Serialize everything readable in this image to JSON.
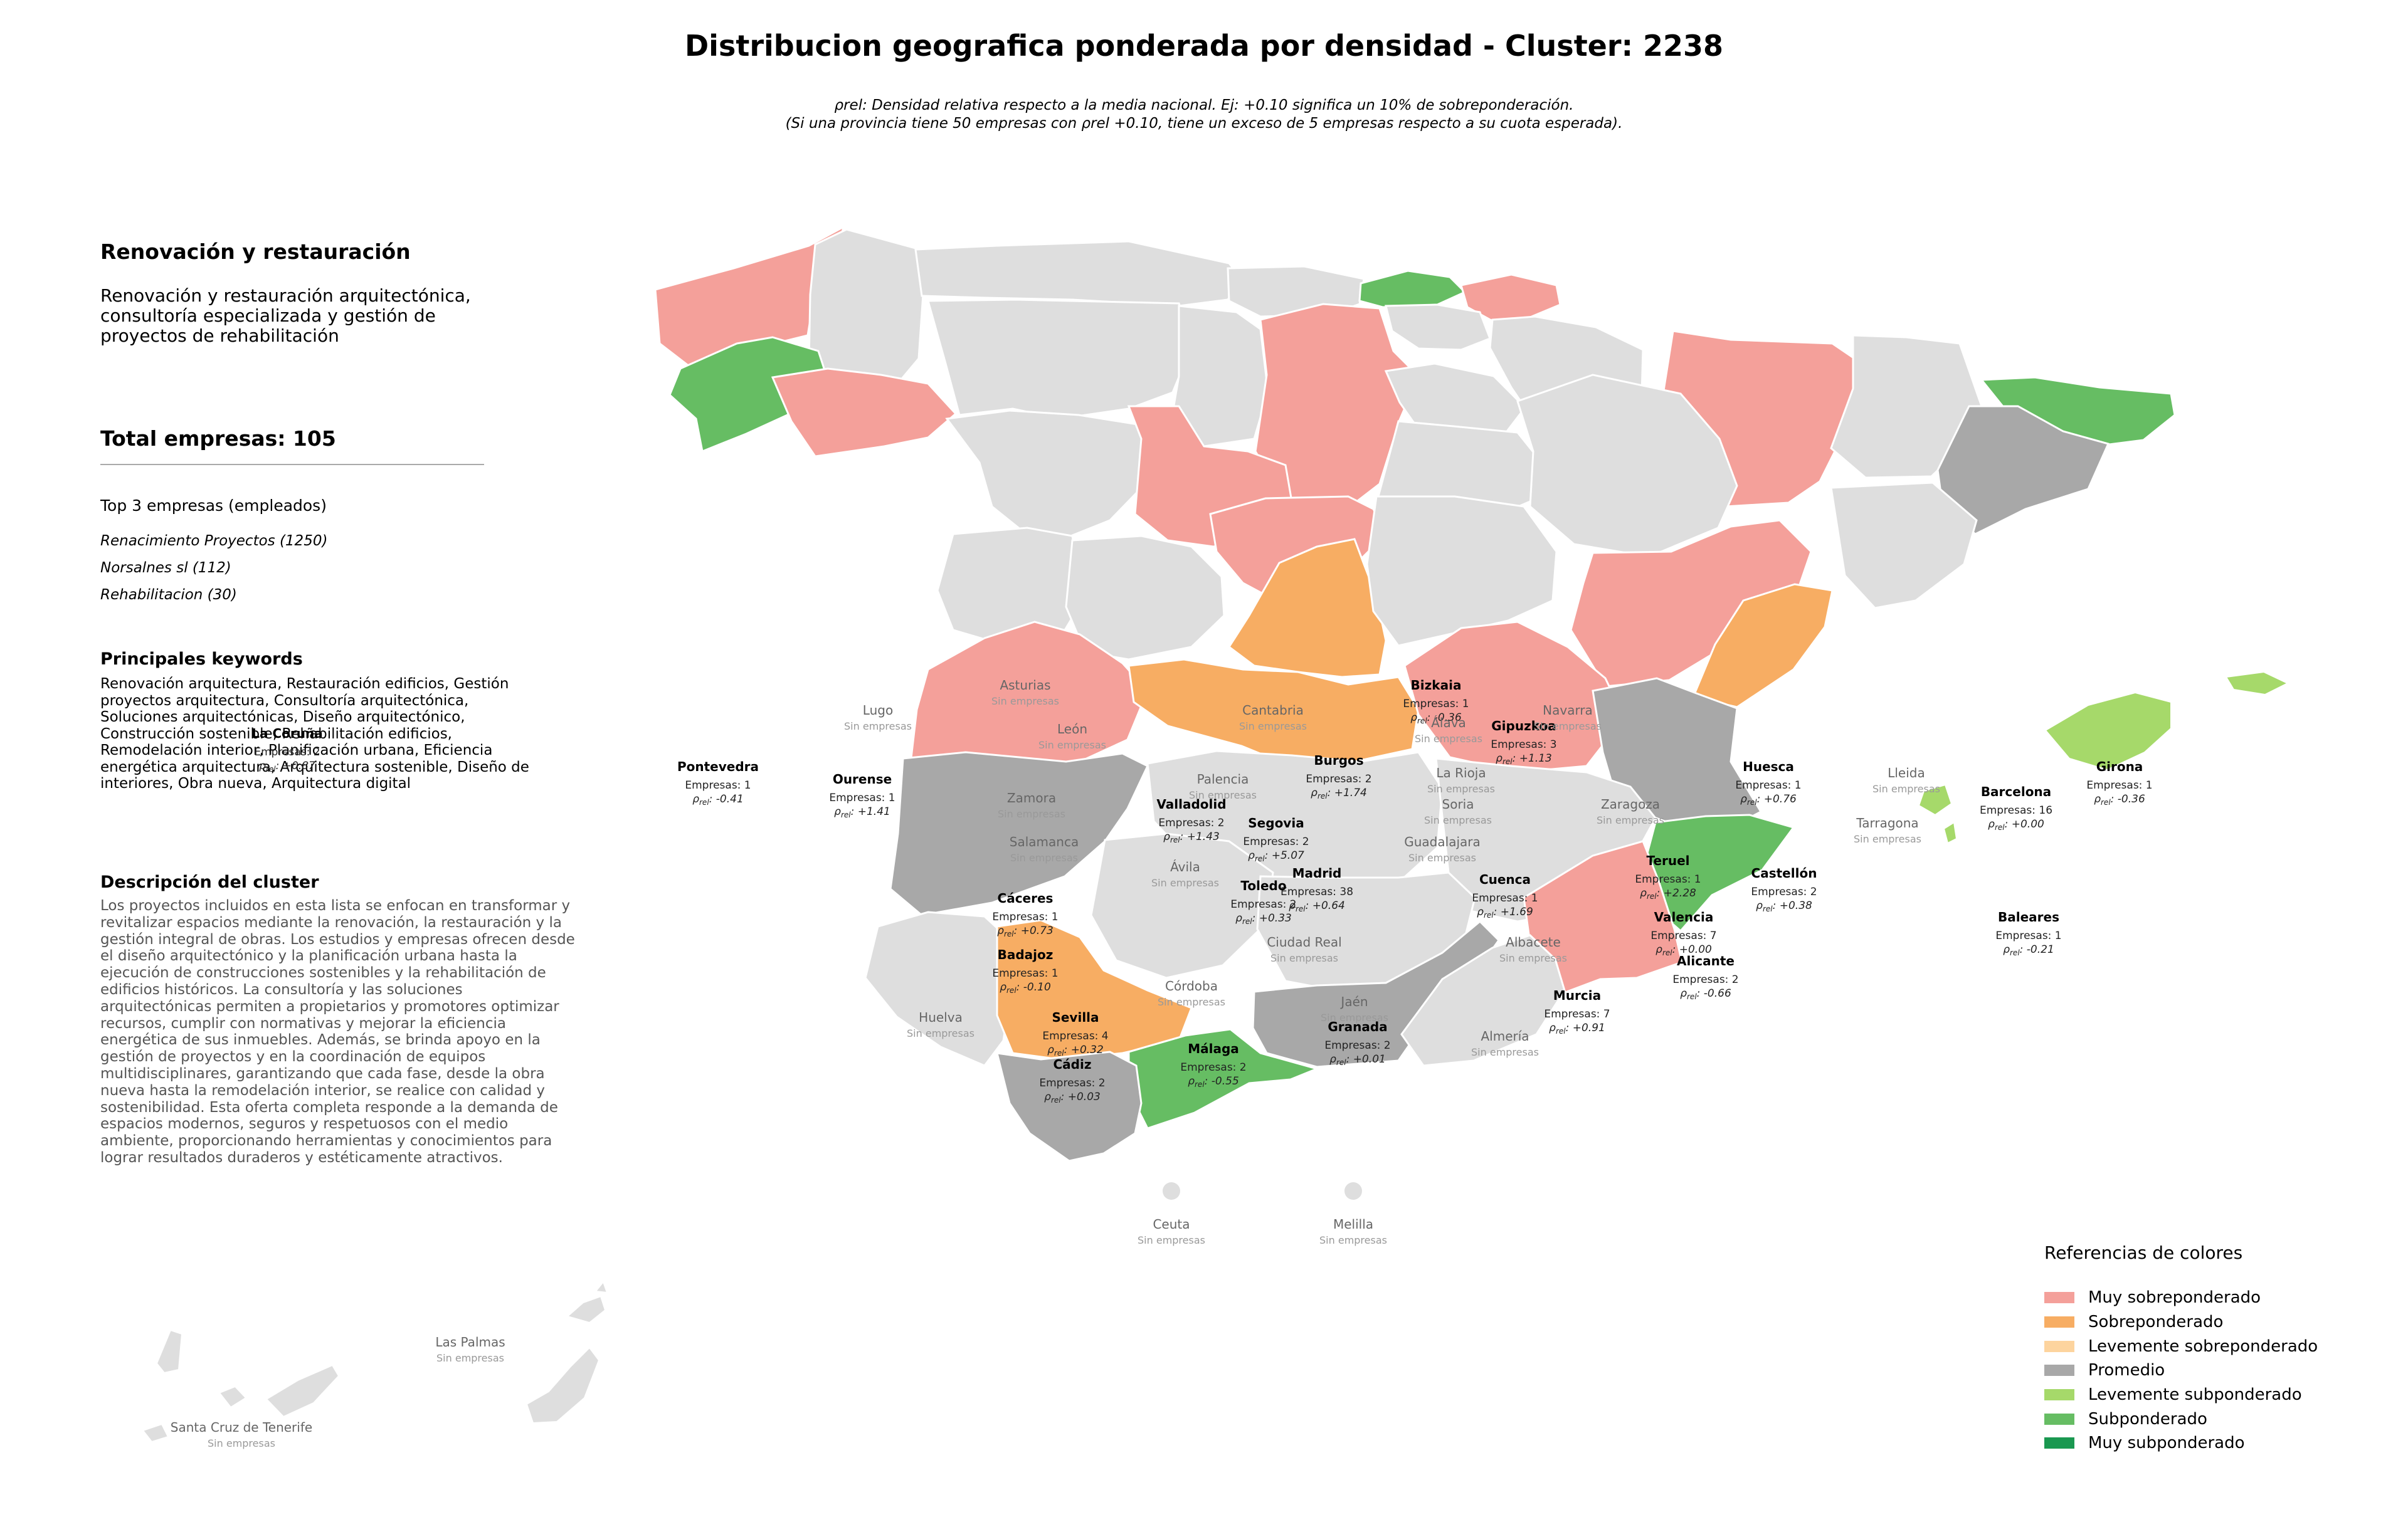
{
  "title": "Distribucion geografica ponderada por densidad - Cluster: 2238",
  "subtitle": {
    "line1": "ρrel: Densidad relativa respecto a la media nacional. Ej: +0.10 significa un 10% de sobreponderación.",
    "line2": "(Si una provincia tiene 50 empresas con ρrel +0.10, tiene un exceso de 5 empresas respecto a su cuota esperada)."
  },
  "sidebar": {
    "cluster_title": "Renovación y restauración",
    "cluster_description": "Renovación y restauración arquitectónica, consultoría especializada y gestión de proyectos de rehabilitación",
    "total": "Total empresas: 105",
    "top3_title": "Top 3 empresas (empleados)",
    "top3": [
      "Renacimiento Proyectos (1250)",
      "Norsalnes sl (112)",
      "Rehabilitacion (30)"
    ],
    "keywords_title": "Principales keywords",
    "keywords": "Renovación arquitectura, Restauración edificios, Gestión proyectos arquitectura, Consultoría arquitectónica, Soluciones arquitectónicas, Diseño arquitectónico, Construcción sostenible, Rehabilitación edificios, Remodelación interior, Planificación urbana, Eficiencia energética arquitectura, Arquitectura sostenible, Diseño de interiores, Obra nueva, Arquitectura digital",
    "description_title": "Descripción del cluster",
    "description": "Los proyectos incluidos en esta lista se enfocan en transformar y revitalizar espacios mediante la renovación, la restauración y la gestión integral de obras. Los estudios y empresas ofrecen desde el diseño arquitectónico y la planificación urbana hasta la ejecución de construcciones sostenibles y la rehabilitación de edificios históricos. La consultoría y las soluciones arquitectónicas permiten a propietarios y promotores optimizar recursos, cumplir con normativas y mejorar la eficiencia energética de sus inmuebles. Además, se brinda apoyo en la gestión de proyectos y en la coordinación de equipos multidisciplinares, garantizando que cada fase, desde la obra nueva hasta la remodelación interior, se realice con calidad y sostenibilidad. Esta oferta completa responde a la demanda de espacios modernos, seguros y respetuosos con el medio ambiente, proporcionando herramientas y conocimientos para lograr resultados duraderos y estéticamente atractivos."
  },
  "labels": {
    "empresas_prefix": "Empresas: ",
    "rho_symbol": "ρ",
    "rho_sub": "rel",
    "sin_empresas": "Sin empresas"
  },
  "colors": {
    "Muy sobreponderado": "#f4a09a",
    "Sobreponderado": "#f7ad63",
    "Levemente sobreponderado": "#fdd49e",
    "Promedio": "#a8a8a8",
    "Levemente subponderado": "#a6d96a",
    "Subponderado": "#66bd63",
    "Muy subponderado": "#1a9850",
    "sin_empresas": "#dedede"
  },
  "provinces": [
    {
      "name": "La Coruña",
      "category": "Muy sobreponderado",
      "empresas": "2",
      "rho": "+0.87"
    },
    {
      "name": "Lugo",
      "category": null
    },
    {
      "name": "Asturias",
      "category": null
    },
    {
      "name": "Cantabria",
      "category": null
    },
    {
      "name": "Bizkaia",
      "category": "Subponderado",
      "empresas": "1",
      "rho": "-0.36"
    },
    {
      "name": "Gipuzkoa",
      "category": "Muy sobreponderado",
      "empresas": "3",
      "rho": "+1.13"
    },
    {
      "name": "Álava",
      "category": null
    },
    {
      "name": "Navarra",
      "category": null
    },
    {
      "name": "Huesca",
      "category": "Muy sobreponderado",
      "empresas": "1",
      "rho": "+0.76"
    },
    {
      "name": "Lleida",
      "category": null
    },
    {
      "name": "Girona",
      "category": "Subponderado",
      "empresas": "1",
      "rho": "-0.36"
    },
    {
      "name": "Barcelona",
      "category": "Promedio",
      "empresas": "16",
      "rho": "+0.00"
    },
    {
      "name": "Tarragona",
      "category": null
    },
    {
      "name": "Pontevedra",
      "category": "Subponderado",
      "empresas": "1",
      "rho": "-0.41"
    },
    {
      "name": "Ourense",
      "category": "Muy sobreponderado",
      "empresas": "1",
      "rho": "+1.41"
    },
    {
      "name": "León",
      "category": null
    },
    {
      "name": "Palencia",
      "category": null
    },
    {
      "name": "Burgos",
      "category": "Muy sobreponderado",
      "empresas": "2",
      "rho": "+1.74"
    },
    {
      "name": "La Rioja",
      "category": null
    },
    {
      "name": "Soria",
      "category": null
    },
    {
      "name": "Zaragoza",
      "category": null
    },
    {
      "name": "Zamora",
      "category": null
    },
    {
      "name": "Valladolid",
      "category": "Muy sobreponderado",
      "empresas": "2",
      "rho": "+1.43"
    },
    {
      "name": "Segovia",
      "category": "Muy sobreponderado",
      "empresas": "2",
      "rho": "+5.07"
    },
    {
      "name": "Salamanca",
      "category": null
    },
    {
      "name": "Ávila",
      "category": null
    },
    {
      "name": "Madrid",
      "category": "Sobreponderado",
      "empresas": "38",
      "rho": "+0.64"
    },
    {
      "name": "Guadalajara",
      "category": null
    },
    {
      "name": "Teruel",
      "category": "Muy sobreponderado",
      "empresas": "1",
      "rho": "+2.28"
    },
    {
      "name": "Castellón",
      "category": "Sobreponderado",
      "empresas": "2",
      "rho": "+0.38"
    },
    {
      "name": "Cáceres",
      "category": "Muy sobreponderado",
      "empresas": "1",
      "rho": "+0.73"
    },
    {
      "name": "Toledo",
      "category": "Sobreponderado",
      "empresas": "2",
      "rho": "+0.33"
    },
    {
      "name": "Cuenca",
      "category": "Muy sobreponderado",
      "empresas": "1",
      "rho": "+1.69"
    },
    {
      "name": "Valencia",
      "category": "Promedio",
      "empresas": "7",
      "rho": "+0.00"
    },
    {
      "name": "Baleares",
      "category": "Levemente subponderado",
      "empresas": "1",
      "rho": "-0.21"
    },
    {
      "name": "Badajoz",
      "category": "Promedio",
      "empresas": "1",
      "rho": "-0.10"
    },
    {
      "name": "Ciudad Real",
      "category": null
    },
    {
      "name": "Albacete",
      "category": null
    },
    {
      "name": "Alicante",
      "category": "Subponderado",
      "empresas": "2",
      "rho": "-0.66"
    },
    {
      "name": "Córdoba",
      "category": null
    },
    {
      "name": "Jaén",
      "category": null
    },
    {
      "name": "Murcia",
      "category": "Muy sobreponderado",
      "empresas": "7",
      "rho": "+0.91"
    },
    {
      "name": "Huelva",
      "category": null
    },
    {
      "name": "Sevilla",
      "category": "Sobreponderado",
      "empresas": "4",
      "rho": "+0.32"
    },
    {
      "name": "Granada",
      "category": "Promedio",
      "empresas": "2",
      "rho": "+0.01"
    },
    {
      "name": "Almería",
      "category": null
    },
    {
      "name": "Málaga",
      "category": "Subponderado",
      "empresas": "2",
      "rho": "-0.55"
    },
    {
      "name": "Cádiz",
      "category": "Promedio",
      "empresas": "2",
      "rho": "+0.03"
    },
    {
      "name": "Ceuta",
      "category": null
    },
    {
      "name": "Melilla",
      "category": null
    },
    {
      "name": "Las Palmas",
      "category": null
    },
    {
      "name": "Santa Cruz de Tenerife",
      "category": null
    }
  ],
  "legend": {
    "title": "Referencias de colores",
    "items": [
      "Muy sobreponderado",
      "Sobreponderado",
      "Levemente sobreponderado",
      "Promedio",
      "Levemente subponderado",
      "Subponderado",
      "Muy subponderado"
    ]
  }
}
